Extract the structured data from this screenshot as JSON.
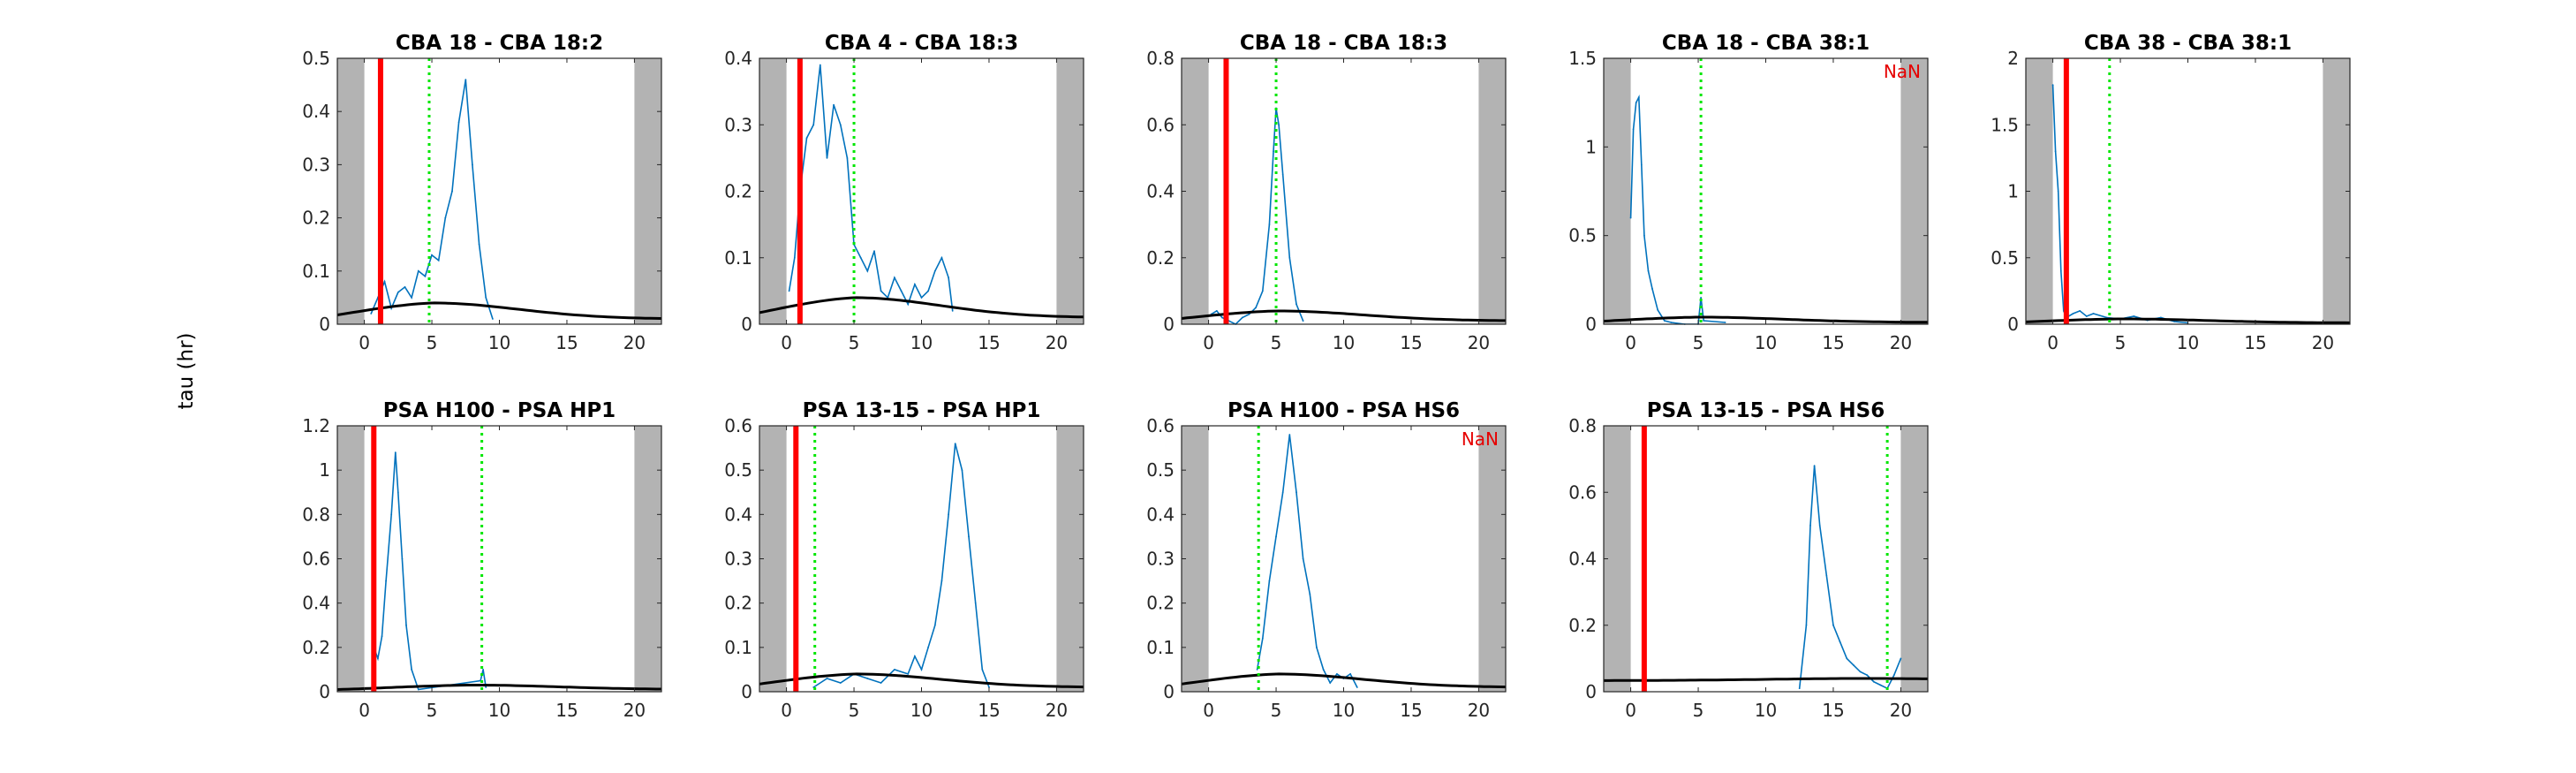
{
  "figure": {
    "ylabel": "tau (hr)"
  },
  "chart_data": [
    {
      "type": "line",
      "title": "CBA 18 - CBA 18:2",
      "xlim": [
        -2,
        22
      ],
      "ylim": [
        0,
        0.5
      ],
      "xticks": [
        0,
        5,
        10,
        15,
        20
      ],
      "yticks": [
        0,
        0.1,
        0.2,
        0.3,
        0.4,
        0.5
      ],
      "shaded_x": [
        [
          -2,
          0
        ],
        [
          20,
          22
        ]
      ],
      "red_line_x": 1.2,
      "green_dotted_x": 4.8,
      "curve_peak": 0.04,
      "curve_peak_x": 5,
      "curve_end": 0.01,
      "nan_label": "",
      "series": [
        {
          "x": [
            0.5,
            1.0,
            1.5,
            2.0,
            2.5,
            3.0,
            3.5,
            4.0,
            4.5,
            5.0,
            5.5,
            6.0,
            6.5,
            7.0,
            7.5,
            8.0,
            8.5,
            9.0,
            9.5
          ],
          "y": [
            0.02,
            0.05,
            0.08,
            0.03,
            0.06,
            0.07,
            0.05,
            0.1,
            0.09,
            0.13,
            0.12,
            0.2,
            0.25,
            0.38,
            0.46,
            0.3,
            0.15,
            0.05,
            0.01
          ]
        }
      ]
    },
    {
      "type": "line",
      "title": "CBA 4 - CBA 18:3",
      "xlim": [
        -2,
        22
      ],
      "ylim": [
        0,
        0.4
      ],
      "xticks": [
        0,
        5,
        10,
        15,
        20
      ],
      "yticks": [
        0,
        0.1,
        0.2,
        0.3,
        0.4
      ],
      "shaded_x": [
        [
          -2,
          0
        ],
        [
          20,
          22
        ]
      ],
      "red_line_x": 1.0,
      "green_dotted_x": 5.0,
      "curve_peak": 0.04,
      "curve_peak_x": 5,
      "curve_end": 0.01,
      "nan_label": "",
      "series": [
        {
          "x": [
            0.2,
            0.6,
            1.0,
            1.5,
            2.0,
            2.5,
            3.0,
            3.5,
            4.0,
            4.5,
            5.0,
            5.5,
            6.0,
            6.5,
            7.0,
            7.5,
            8.0,
            8.5,
            9.0,
            9.5,
            10.0,
            10.5,
            11.0,
            11.5,
            12.0,
            12.3
          ],
          "y": [
            0.05,
            0.1,
            0.2,
            0.28,
            0.3,
            0.39,
            0.25,
            0.33,
            0.3,
            0.25,
            0.12,
            0.1,
            0.08,
            0.11,
            0.05,
            0.04,
            0.07,
            0.05,
            0.03,
            0.06,
            0.04,
            0.05,
            0.08,
            0.1,
            0.07,
            0.02
          ]
        }
      ]
    },
    {
      "type": "line",
      "title": "CBA 18 - CBA 18:3",
      "xlim": [
        -2,
        22
      ],
      "ylim": [
        0,
        0.8
      ],
      "xticks": [
        0,
        5,
        10,
        15,
        20
      ],
      "yticks": [
        0,
        0.2,
        0.4,
        0.6,
        0.8
      ],
      "shaded_x": [
        [
          -2,
          0
        ],
        [
          20,
          22
        ]
      ],
      "red_line_x": 1.3,
      "green_dotted_x": 5.0,
      "curve_peak": 0.04,
      "curve_peak_x": 5,
      "curve_end": 0.01,
      "nan_label": "",
      "series": [
        {
          "x": [
            0.2,
            0.6,
            1.0,
            1.5,
            2.0,
            2.5,
            3.0,
            3.5,
            4.0,
            4.5,
            4.8,
            5.0,
            5.2,
            5.5,
            6.0,
            6.5,
            7.0
          ],
          "y": [
            0.03,
            0.04,
            0.02,
            0.01,
            0.0,
            0.02,
            0.03,
            0.05,
            0.1,
            0.3,
            0.52,
            0.65,
            0.6,
            0.45,
            0.2,
            0.06,
            0.01
          ]
        }
      ]
    },
    {
      "type": "line",
      "title": "CBA 18 - CBA 38:1",
      "xlim": [
        -2,
        22
      ],
      "ylim": [
        0,
        1.5
      ],
      "xticks": [
        0,
        5,
        10,
        15,
        20
      ],
      "yticks": [
        0,
        0.5,
        1,
        1.5
      ],
      "shaded_x": [
        [
          -2,
          0
        ],
        [
          20,
          22
        ]
      ],
      "red_line_x": null,
      "green_dotted_x": 5.2,
      "curve_peak": 0.04,
      "curve_peak_x": 5,
      "curve_end": 0.01,
      "nan_label": "NaN",
      "series": [
        {
          "x": [
            0.0,
            0.2,
            0.4,
            0.6,
            0.8,
            1.0,
            1.3,
            1.6,
            2.0,
            2.5,
            3.0,
            4.0,
            5.0,
            5.2,
            5.4,
            7.0
          ],
          "y": [
            0.6,
            1.1,
            1.25,
            1.28,
            0.9,
            0.5,
            0.3,
            0.2,
            0.08,
            0.02,
            0.01,
            0.0,
            0.0,
            0.15,
            0.02,
            0.01
          ]
        }
      ]
    },
    {
      "type": "line",
      "title": "CBA 38 - CBA 38:1",
      "xlim": [
        -2,
        22
      ],
      "ylim": [
        0,
        2
      ],
      "xticks": [
        0,
        5,
        10,
        15,
        20
      ],
      "yticks": [
        0,
        0.5,
        1,
        1.5,
        2
      ],
      "shaded_x": [
        [
          -2,
          0
        ],
        [
          20,
          22
        ]
      ],
      "red_line_x": 1.0,
      "green_dotted_x": 4.2,
      "curve_peak": 0.04,
      "curve_peak_x": 5,
      "curve_end": 0.01,
      "nan_label": "",
      "series": [
        {
          "x": [
            0.0,
            0.2,
            0.4,
            0.6,
            0.8,
            1.0,
            1.5,
            2.0,
            2.5,
            3.0,
            4.0,
            5.0,
            6.0,
            7.0,
            8.0,
            9.0,
            10.0
          ],
          "y": [
            1.8,
            1.3,
            1.0,
            0.4,
            0.1,
            0.05,
            0.08,
            0.1,
            0.06,
            0.08,
            0.05,
            0.04,
            0.06,
            0.03,
            0.05,
            0.02,
            0.01
          ]
        }
      ]
    },
    {
      "type": "line",
      "title": "PSA H100 - PSA HP1",
      "xlim": [
        -2,
        22
      ],
      "ylim": [
        0,
        1.2
      ],
      "xticks": [
        0,
        5,
        10,
        15,
        20
      ],
      "yticks": [
        0,
        0.2,
        0.4,
        0.6,
        0.8,
        1,
        1.2
      ],
      "shaded_x": [
        [
          -2,
          0
        ],
        [
          20,
          22
        ]
      ],
      "red_line_x": 0.7,
      "green_dotted_x": 8.7,
      "curve_peak": 0.03,
      "curve_peak_x": 8,
      "curve_end": 0.01,
      "nan_label": "",
      "series": [
        {
          "x": [
            0.7,
            1.0,
            1.3,
            1.6,
            2.0,
            2.3,
            2.5,
            2.8,
            3.1,
            3.5,
            4.0,
            8.6,
            8.8,
            9.0
          ],
          "y": [
            0.2,
            0.15,
            0.25,
            0.5,
            0.8,
            1.08,
            0.9,
            0.6,
            0.3,
            0.1,
            0.01,
            0.05,
            0.1,
            0.02
          ]
        }
      ]
    },
    {
      "type": "line",
      "title": "PSA 13-15 - PSA HP1",
      "xlim": [
        -2,
        22
      ],
      "ylim": [
        0,
        0.6
      ],
      "xticks": [
        0,
        5,
        10,
        15,
        20
      ],
      "yticks": [
        0,
        0.1,
        0.2,
        0.3,
        0.4,
        0.5,
        0.6
      ],
      "shaded_x": [
        [
          -2,
          0
        ],
        [
          20,
          22
        ]
      ],
      "red_line_x": 0.7,
      "green_dotted_x": 2.1,
      "curve_peak": 0.04,
      "curve_peak_x": 5,
      "curve_end": 0.01,
      "nan_label": "",
      "series": [
        {
          "x": [
            2.0,
            3.0,
            4.0,
            5.0,
            6.0,
            7.0,
            8.0,
            9.0,
            9.5,
            10.0,
            10.5,
            11.0,
            11.5,
            12.0,
            12.5,
            13.0,
            13.5,
            14.0,
            14.5,
            15.0
          ],
          "y": [
            0.01,
            0.03,
            0.02,
            0.04,
            0.03,
            0.02,
            0.05,
            0.04,
            0.08,
            0.05,
            0.1,
            0.15,
            0.25,
            0.4,
            0.56,
            0.5,
            0.35,
            0.2,
            0.05,
            0.01
          ]
        }
      ]
    },
    {
      "type": "line",
      "title": "PSA H100 - PSA HS6",
      "xlim": [
        -2,
        22
      ],
      "ylim": [
        0,
        0.6
      ],
      "xticks": [
        0,
        5,
        10,
        15,
        20
      ],
      "yticks": [
        0,
        0.1,
        0.2,
        0.3,
        0.4,
        0.5,
        0.6
      ],
      "shaded_x": [
        [
          -2,
          0
        ],
        [
          20,
          22
        ]
      ],
      "red_line_x": null,
      "green_dotted_x": 3.7,
      "curve_peak": 0.04,
      "curve_peak_x": 5,
      "curve_end": 0.01,
      "nan_label": "NaN",
      "series": [
        {
          "x": [
            3.6,
            4.0,
            4.5,
            5.0,
            5.5,
            6.0,
            6.5,
            7.0,
            7.5,
            8.0,
            8.5,
            9.0,
            9.5,
            10.0,
            10.5,
            11.0
          ],
          "y": [
            0.05,
            0.12,
            0.25,
            0.35,
            0.45,
            0.58,
            0.45,
            0.3,
            0.22,
            0.1,
            0.05,
            0.02,
            0.04,
            0.03,
            0.04,
            0.01
          ]
        }
      ]
    },
    {
      "type": "line",
      "title": "PSA 13-15 - PSA HS6",
      "xlim": [
        -2,
        22
      ],
      "ylim": [
        0,
        0.8
      ],
      "xticks": [
        0,
        5,
        10,
        15,
        20
      ],
      "yticks": [
        0,
        0.2,
        0.4,
        0.6,
        0.8
      ],
      "shaded_x": [
        [
          -2,
          0
        ],
        [
          20,
          22
        ]
      ],
      "red_line_x": 1.0,
      "green_dotted_x": 19.0,
      "curve_peak": 0.04,
      "curve_peak_x": 17,
      "curve_end": 0.035,
      "nan_label": "",
      "series": [
        {
          "x": [
            12.5,
            13.0,
            13.3,
            13.6,
            14.0,
            14.5,
            15.0,
            15.5,
            16.0,
            16.5,
            17.0,
            17.5,
            18.0,
            18.5,
            19.0,
            19.5,
            20.0
          ],
          "y": [
            0.01,
            0.2,
            0.5,
            0.68,
            0.5,
            0.35,
            0.2,
            0.15,
            0.1,
            0.08,
            0.06,
            0.05,
            0.03,
            0.02,
            0.01,
            0.05,
            0.1
          ]
        }
      ]
    }
  ]
}
